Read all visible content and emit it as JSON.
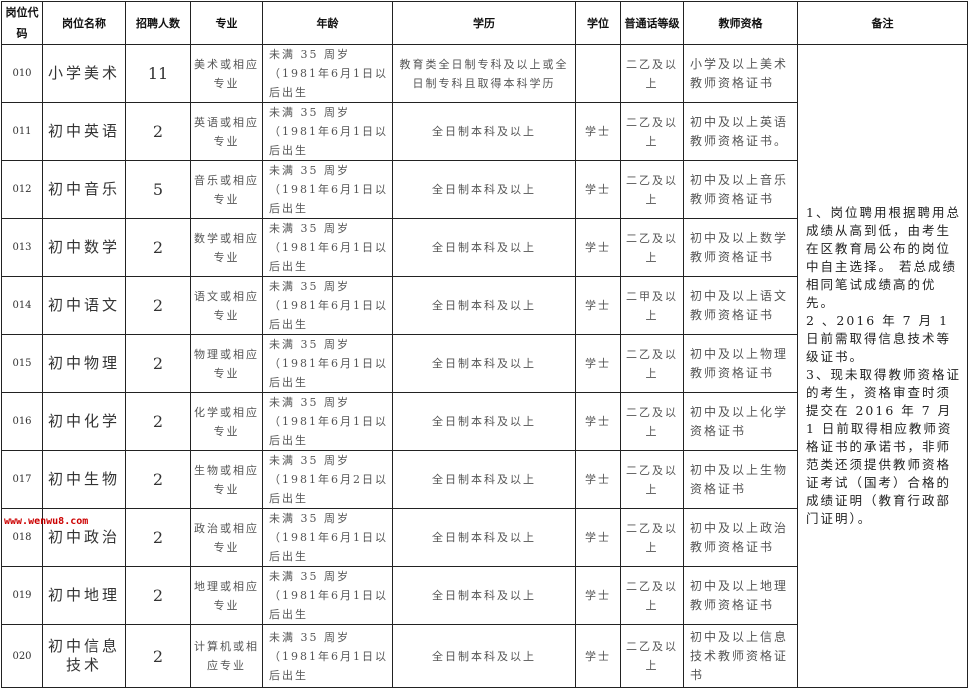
{
  "headers": [
    "岗位代码",
    "岗位名称",
    "招聘人数",
    "专业",
    "年龄",
    "学历",
    "学位",
    "普通话等级",
    "教师资格",
    "备注"
  ],
  "rows": [
    {
      "code": "010",
      "name": "小学美术",
      "count": "11",
      "major": "美术或相应专业",
      "age": "未满 35 周岁（1981年6月1日以后出生",
      "education": "教育类全日制专科及以上或全日制专科且取得本科学历",
      "degree": "",
      "mandarin": "二乙及以上",
      "certificate": "小学及以上美术教师资格证书"
    },
    {
      "code": "011",
      "name": "初中英语",
      "count": "2",
      "major": "英语或相应专业",
      "age": "未满 35 周岁（1981年6月1日以后出生",
      "education": "全日制本科及以上",
      "degree": "学士",
      "mandarin": "二乙及以上",
      "certificate": "初中及以上英语教师资格证书。"
    },
    {
      "code": "012",
      "name": "初中音乐",
      "count": "5",
      "major": "音乐或相应专业",
      "age": "未满 35 周岁（1981年6月1日以后出生",
      "education": "全日制本科及以上",
      "degree": "学士",
      "mandarin": "二乙及以上",
      "certificate": "初中及以上音乐教师资格证书"
    },
    {
      "code": "013",
      "name": "初中数学",
      "count": "2",
      "major": "数学或相应专业",
      "age": "未满 35 周岁（1981年6月1日以后出生",
      "education": "全日制本科及以上",
      "degree": "学士",
      "mandarin": "二乙及以上",
      "certificate": "初中及以上数学教师资格证书"
    },
    {
      "code": "014",
      "name": "初中语文",
      "count": "2",
      "major": "语文或相应专业",
      "age": "未满 35 周岁（1981年6月1日以后出生",
      "education": "全日制本科及以上",
      "degree": "学士",
      "mandarin": "二甲及以上",
      "certificate": "初中及以上语文教师资格证书"
    },
    {
      "code": "015",
      "name": "初中物理",
      "count": "2",
      "major": "物理或相应专业",
      "age": "未满 35 周岁（1981年6月1日以后出生",
      "education": "全日制本科及以上",
      "degree": "学士",
      "mandarin": "二乙及以上",
      "certificate": "初中及以上物理教师资格证书"
    },
    {
      "code": "016",
      "name": "初中化学",
      "count": "2",
      "major": "化学或相应专业",
      "age": "未满 35 周岁（1981年6月1日以后出生",
      "education": "全日制本科及以上",
      "degree": "学士",
      "mandarin": "二乙及以上",
      "certificate": "初中及以上化学资格证书"
    },
    {
      "code": "017",
      "name": "初中生物",
      "count": "2",
      "major": "生物或相应专业",
      "age": "未满 35 周岁（1981年6月2日以后出生",
      "education": "全日制本科及以上",
      "degree": "学士",
      "mandarin": "二乙及以上",
      "certificate": "初中及以上生物资格证书"
    },
    {
      "code": "018",
      "name": "初中政治",
      "count": "2",
      "major": "政治或相应专业",
      "age": "未满 35 周岁（1981年6月1日以后出生",
      "education": "全日制本科及以上",
      "degree": "学士",
      "mandarin": "二乙及以上",
      "certificate": "初中及以上政治教师资格证书"
    },
    {
      "code": "019",
      "name": "初中地理",
      "count": "2",
      "major": "地理或相应专业",
      "age": "未满 35 周岁（1981年6月1日以后出生",
      "education": "全日制本科及以上",
      "degree": "学士",
      "mandarin": "二乙及以上",
      "certificate": "初中及以上地理教师资格证书"
    },
    {
      "code": "020",
      "name": "初中信息技术",
      "count": "2",
      "major": "计算机或相应专业",
      "age": "未满 35 周岁（1981年6月1日以后出生",
      "education": "全日制本科及以上",
      "degree": "学士",
      "mandarin": "二乙及以上",
      "certificate": "初中及以上信息技术教师资格证书"
    }
  ],
  "remarks": [
    "1、岗位聘用根据聘用总成绩从高到低，由考生在区教育局公布的岗位中自主选择。 若总成绩相同笔试成绩高的优先。",
    "2 、2016 年 7 月 1 日前需取得信息技术等级证书。",
    "3、现未取得教师资格证的考生，资格审查时须提交在 2016 年 7 月 1 日前取得相应教师资格证书的承诺书，非师范类还须提供教师资格证考试（国考）合格的成绩证明（教育行政部门证明）。"
  ],
  "watermark": "www.wenwu8.com"
}
